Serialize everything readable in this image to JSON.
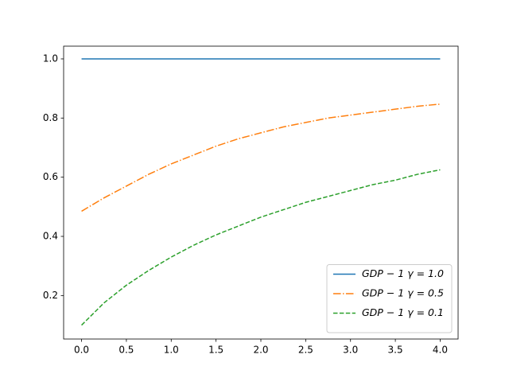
{
  "chart_data": {
    "type": "line",
    "x": [
      0,
      0.25,
      0.5,
      0.75,
      1,
      1.25,
      1.5,
      1.75,
      2,
      2.25,
      2.5,
      2.75,
      3,
      3.25,
      3.5,
      3.75,
      4
    ],
    "series": [
      {
        "name": "GDP − 1 γ = 1.0",
        "color": "#1f77b4",
        "linestyle": "solid",
        "values": [
          1,
          1,
          1,
          1,
          1,
          1,
          1,
          1,
          1,
          1,
          1,
          1,
          1,
          1,
          1,
          1,
          1
        ]
      },
      {
        "name": "GDP − 1 γ = 0.5",
        "color": "#ff7f0e",
        "linestyle": "dashdot",
        "values": [
          0.485,
          0.53,
          0.57,
          0.61,
          0.645,
          0.675,
          0.705,
          0.73,
          0.75,
          0.77,
          0.785,
          0.8,
          0.81,
          0.82,
          0.83,
          0.84,
          0.847
        ]
      },
      {
        "name": "GDP − 1 γ = 0.1",
        "color": "#2ca02c",
        "linestyle": "dashed",
        "values": [
          0.1,
          0.175,
          0.235,
          0.285,
          0.33,
          0.37,
          0.405,
          0.435,
          0.465,
          0.49,
          0.515,
          0.535,
          0.555,
          0.575,
          0.59,
          0.61,
          0.625
        ]
      }
    ],
    "xlim": [
      -0.2,
      4.2
    ],
    "ylim": [
      0.053,
      1.043
    ],
    "xticks": [
      {
        "value": 0,
        "label": "0.0"
      },
      0.5,
      {
        "value": 1,
        "label": "1.0"
      },
      1.5,
      {
        "value": 2,
        "label": "2.0"
      },
      2.5,
      {
        "value": 3,
        "label": "3.0"
      },
      3.5,
      {
        "value": 4,
        "label": "4.0"
      }
    ],
    "yticks": [
      0.2,
      0.4,
      0.6,
      0.8,
      {
        "value": 1,
        "label": "1.0"
      }
    ],
    "grid": false,
    "legend": "lower right"
  }
}
